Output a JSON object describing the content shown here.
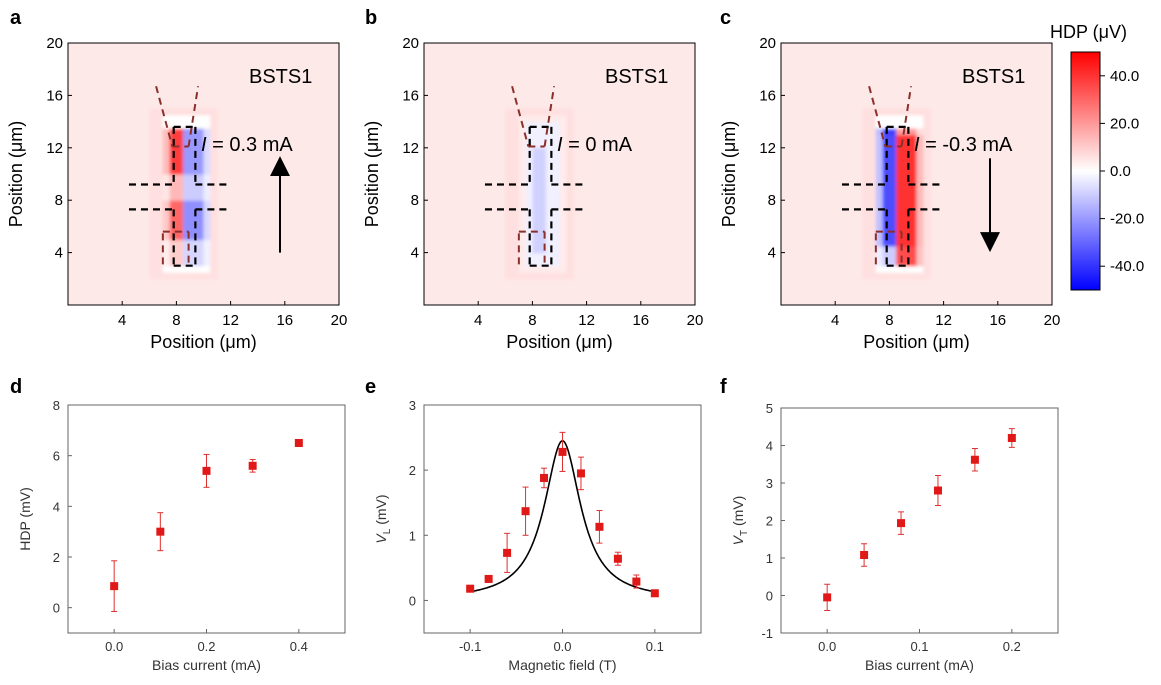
{
  "panel_labels": [
    "a",
    "b",
    "c",
    "d",
    "e",
    "f"
  ],
  "colorbar": {
    "title": "HDP (μV)",
    "ticks": [
      "40.0",
      "20.0",
      "0.0",
      "-20.0",
      "-40.0"
    ],
    "colors": {
      "high": "#ff0000",
      "mid": "#ffffff",
      "low": "#0000ff"
    }
  },
  "chart_data": [
    {
      "type": "heatmap",
      "panel": "a",
      "xlabel": "Position (μm)",
      "ylabel": "Position (μm)",
      "xlim": [
        0,
        20
      ],
      "ylim": [
        0,
        20
      ],
      "xticks": [
        "4",
        "8",
        "12",
        "16",
        "20"
      ],
      "yticks": [
        "4",
        "8",
        "12",
        "16",
        "20"
      ],
      "sample_label": "BSTS1",
      "current_label": {
        "symbol": "I",
        "value": " = 0.3 mA"
      },
      "arrow": "up",
      "clim": [
        -50,
        50
      ]
    },
    {
      "type": "heatmap",
      "panel": "b",
      "xlabel": "Position (μm)",
      "ylabel": "Position (μm)",
      "xlim": [
        0,
        20
      ],
      "ylim": [
        0,
        20
      ],
      "xticks": [
        "4",
        "8",
        "12",
        "16",
        "20"
      ],
      "yticks": [
        "4",
        "8",
        "12",
        "16",
        "20"
      ],
      "sample_label": "BSTS1",
      "current_label": {
        "symbol": "I",
        "value": " = 0 mA"
      },
      "arrow": "none",
      "clim": [
        -50,
        50
      ]
    },
    {
      "type": "heatmap",
      "panel": "c",
      "xlabel": "Position (μm)",
      "ylabel": "Position (μm)",
      "xlim": [
        0,
        20
      ],
      "ylim": [
        0,
        20
      ],
      "xticks": [
        "4",
        "8",
        "12",
        "16",
        "20"
      ],
      "yticks": [
        "4",
        "8",
        "12",
        "16",
        "20"
      ],
      "sample_label": "BSTS1",
      "current_label": {
        "symbol": "I",
        "value": " = -0.3 mA"
      },
      "arrow": "down",
      "clim": [
        -50,
        50
      ]
    },
    {
      "type": "scatter",
      "panel": "d",
      "xlabel": "Bias current (mA)",
      "ylabel": "HDP (mV)",
      "xlim": [
        -0.1,
        0.5
      ],
      "ylim": [
        -1,
        8
      ],
      "xticks": [
        "0.0",
        "0.2",
        "0.4"
      ],
      "yticks": [
        "0",
        "2",
        "4",
        "6",
        "8"
      ],
      "x": [
        0.0,
        0.1,
        0.2,
        0.3,
        0.4
      ],
      "y": [
        0.85,
        3.0,
        5.4,
        5.6,
        6.5
      ],
      "yerr": [
        1.0,
        0.75,
        0.65,
        0.25,
        0.1
      ]
    },
    {
      "type": "scatter",
      "panel": "e",
      "xlabel": "Magnetic field (T)",
      "ylabel": {
        "symbol": "V",
        "sub": "L",
        "unit": " (mV)"
      },
      "xlim": [
        -0.15,
        0.15
      ],
      "ylim": [
        -0.5,
        3
      ],
      "xticks": [
        "-0.1",
        "0.0",
        "0.1"
      ],
      "yticks": [
        "0",
        "1",
        "2",
        "3"
      ],
      "x": [
        -0.1,
        -0.08,
        -0.06,
        -0.04,
        -0.02,
        0.0,
        0.02,
        0.04,
        0.06,
        0.08,
        0.1
      ],
      "y": [
        0.18,
        0.33,
        0.73,
        1.37,
        1.88,
        2.28,
        1.95,
        1.13,
        0.64,
        0.29,
        0.11
      ],
      "yerr": [
        0.05,
        0.05,
        0.3,
        0.37,
        0.15,
        0.3,
        0.25,
        0.25,
        0.1,
        0.1,
        0.05
      ],
      "fit": {
        "type": "lorentzian",
        "amplitude": 2.45,
        "center": 0.0,
        "hwhm": 0.024,
        "offset": 0.0
      }
    },
    {
      "type": "scatter",
      "panel": "f",
      "xlabel": "Bias current (mA)",
      "ylabel": {
        "symbol": "V",
        "sub": "T",
        "unit": " (mV)"
      },
      "xlim": [
        -0.05,
        0.25
      ],
      "ylim": [
        -1,
        5
      ],
      "xticks": [
        "0.0",
        "0.1",
        "0.2"
      ],
      "yticks": [
        "-1",
        "0",
        "1",
        "2",
        "3",
        "4",
        "5"
      ],
      "x": [
        0.0,
        0.04,
        0.08,
        0.12,
        0.16,
        0.2
      ],
      "y": [
        -0.05,
        1.08,
        1.93,
        2.8,
        3.62,
        4.2
      ],
      "yerr": [
        0.35,
        0.3,
        0.3,
        0.4,
        0.3,
        0.25
      ]
    }
  ]
}
